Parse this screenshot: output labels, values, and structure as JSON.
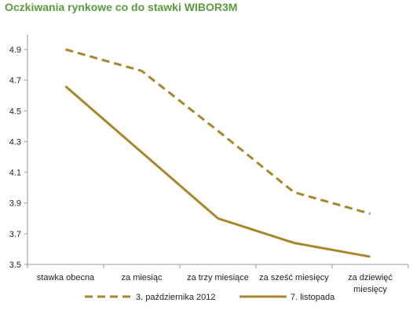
{
  "chart_data": {
    "type": "line",
    "title": "Oczkiwania rynkowe co do stawki WIBOR3M",
    "categories": [
      [
        "stawka obecna"
      ],
      [
        "za miesiąc"
      ],
      [
        "za trzy miesiące"
      ],
      [
        "za sześć miesięcy"
      ],
      [
        "za dziewięć",
        "miesięcy"
      ]
    ],
    "series": [
      {
        "name": "3. października 2012",
        "values": [
          4.9,
          4.76,
          4.37,
          3.97,
          3.83
        ],
        "style": "dashed",
        "color": "#a8862a"
      },
      {
        "name": "7. listopada",
        "values": [
          4.66,
          4.23,
          3.8,
          3.64,
          3.55
        ],
        "style": "solid",
        "color": "#a8862a"
      }
    ],
    "ylim": [
      3.5,
      4.9
    ],
    "yticks": [
      "3.5",
      "3.7",
      "3.9",
      "4.1",
      "4.3",
      "4.5",
      "4.7",
      "4.9"
    ],
    "grid": false,
    "legend": "bottom"
  }
}
